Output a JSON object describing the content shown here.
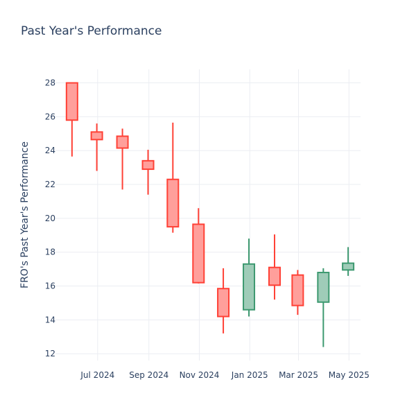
{
  "chart_data": {
    "type": "candlestick",
    "title": "Past Year's Performance",
    "ylabel": "FRO's Past Year's Performance",
    "xlabel": "",
    "ylim": [
      11.6,
      28.8
    ],
    "y_ticks": [
      12,
      14,
      16,
      18,
      20,
      22,
      24,
      26,
      28
    ],
    "x_ticks": [
      {
        "date": "2024-07-01",
        "label": "Jul 2024"
      },
      {
        "date": "2024-09-01",
        "label": "Sep 2024"
      },
      {
        "date": "2024-11-01",
        "label": "Nov 2024"
      },
      {
        "date": "2025-01-01",
        "label": "Jan 2025"
      },
      {
        "date": "2025-03-01",
        "label": "Mar 2025"
      },
      {
        "date": "2025-05-01",
        "label": "May 2025"
      }
    ],
    "grid": true,
    "colors": {
      "increasing": "#3d9970",
      "decreasing": "#ff4136",
      "increasing_fill": "#9fccb8",
      "decreasing_fill": "#ff9f9b"
    },
    "candles": [
      {
        "date": "2024-05-31",
        "open": 28.0,
        "high": 28.0,
        "low": 23.65,
        "close": 25.8
      },
      {
        "date": "2024-06-30",
        "open": 25.1,
        "high": 25.6,
        "low": 22.8,
        "close": 24.65
      },
      {
        "date": "2024-07-31",
        "open": 24.85,
        "high": 25.3,
        "low": 21.7,
        "close": 24.15
      },
      {
        "date": "2024-08-31",
        "open": 23.4,
        "high": 24.05,
        "low": 21.4,
        "close": 22.9
      },
      {
        "date": "2024-09-30",
        "open": 22.3,
        "high": 25.65,
        "low": 19.15,
        "close": 19.5
      },
      {
        "date": "2024-10-31",
        "open": 19.65,
        "high": 20.6,
        "low": 16.15,
        "close": 16.2
      },
      {
        "date": "2024-11-30",
        "open": 15.85,
        "high": 17.05,
        "low": 13.2,
        "close": 14.2
      },
      {
        "date": "2024-12-31",
        "open": 14.6,
        "high": 18.8,
        "low": 14.2,
        "close": 17.3
      },
      {
        "date": "2025-01-31",
        "open": 17.1,
        "high": 19.05,
        "low": 15.2,
        "close": 16.05
      },
      {
        "date": "2025-02-28",
        "open": 16.65,
        "high": 16.95,
        "low": 14.3,
        "close": 14.85
      },
      {
        "date": "2025-03-31",
        "open": 15.05,
        "high": 17.05,
        "low": 12.4,
        "close": 16.8
      },
      {
        "date": "2025-04-30",
        "open": 16.95,
        "high": 18.3,
        "low": 16.6,
        "close": 17.35
      }
    ]
  }
}
